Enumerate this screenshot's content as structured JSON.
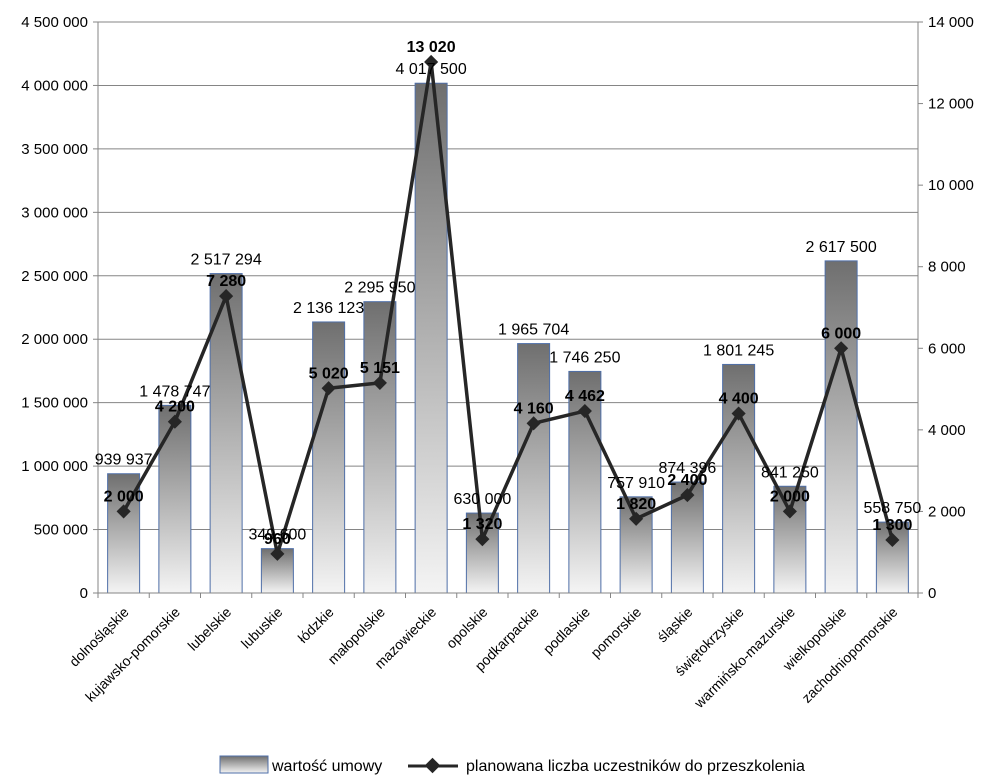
{
  "chart_data": {
    "type": "bar",
    "categories": [
      "dolnośląskie",
      "kujawsko-pomorskie",
      "lubelskie",
      "lubuskie",
      "łódzkie",
      "małopolskie",
      "mazowieckie",
      "opolskie",
      "podkarpackie",
      "podlaskie",
      "pomorskie",
      "śląskie",
      "świętokrzyskie",
      "warmińsko-mazurskie",
      "wielkopolskie",
      "zachodniopomorskie"
    ],
    "series": [
      {
        "name": "wartość umowy",
        "type": "bar",
        "axis": "left",
        "values": [
          939937,
          1478747,
          2517294,
          349600,
          2136123,
          2295950,
          4017500,
          630000,
          1965704,
          1746250,
          757910,
          874396,
          1801245,
          841250,
          2617500,
          558750
        ],
        "labels": [
          "939 937",
          "1 478 747",
          "2 517 294",
          "349 600",
          "2 136 123",
          "2 295 950",
          "4 017 500",
          "630 000",
          "1 965 704",
          "1 746 250",
          "757 910",
          "874 396",
          "1 801 245",
          "841 250",
          "2 617 500",
          "558 750"
        ]
      },
      {
        "name": "planowana liczba uczestników do przeszkolenia",
        "type": "line",
        "axis": "right",
        "values": [
          2000,
          4200,
          7280,
          960,
          5020,
          5151,
          13020,
          1320,
          4160,
          4462,
          1820,
          2400,
          4400,
          2000,
          6000,
          1300
        ],
        "labels": [
          "2 000",
          "4 200",
          "7 280",
          "960",
          "5 020",
          "5 151",
          "13 020",
          "1 320",
          "4 160",
          "4 462",
          "1 820",
          "2 400",
          "4 400",
          "2 000",
          "6 000",
          "1 300"
        ]
      }
    ],
    "y_left": {
      "min": 0,
      "max": 4500000,
      "ticks": [
        0,
        500000,
        1000000,
        1500000,
        2000000,
        2500000,
        3000000,
        3500000,
        4000000,
        4500000
      ],
      "tick_labels": [
        "0",
        "500 000",
        "1 000 000",
        "1 500 000",
        "2 000 000",
        "2 500 000",
        "3 000 000",
        "3 500 000",
        "4 000 000",
        "4 500 000"
      ]
    },
    "y_right": {
      "min": 0,
      "max": 14000,
      "ticks": [
        0,
        2000,
        4000,
        6000,
        8000,
        10000,
        12000,
        14000
      ],
      "tick_labels": [
        "0",
        "2 000",
        "4 000",
        "6 000",
        "8 000",
        "10 000",
        "12 000",
        "14 000"
      ]
    },
    "grid": true,
    "legend_position": "bottom",
    "colors": {
      "bar_top": "#6f6f6f",
      "bar_bottom": "#f4f4f4",
      "bar_border": "#4f6fa8",
      "line": "#262626",
      "grid": "#858585"
    }
  }
}
